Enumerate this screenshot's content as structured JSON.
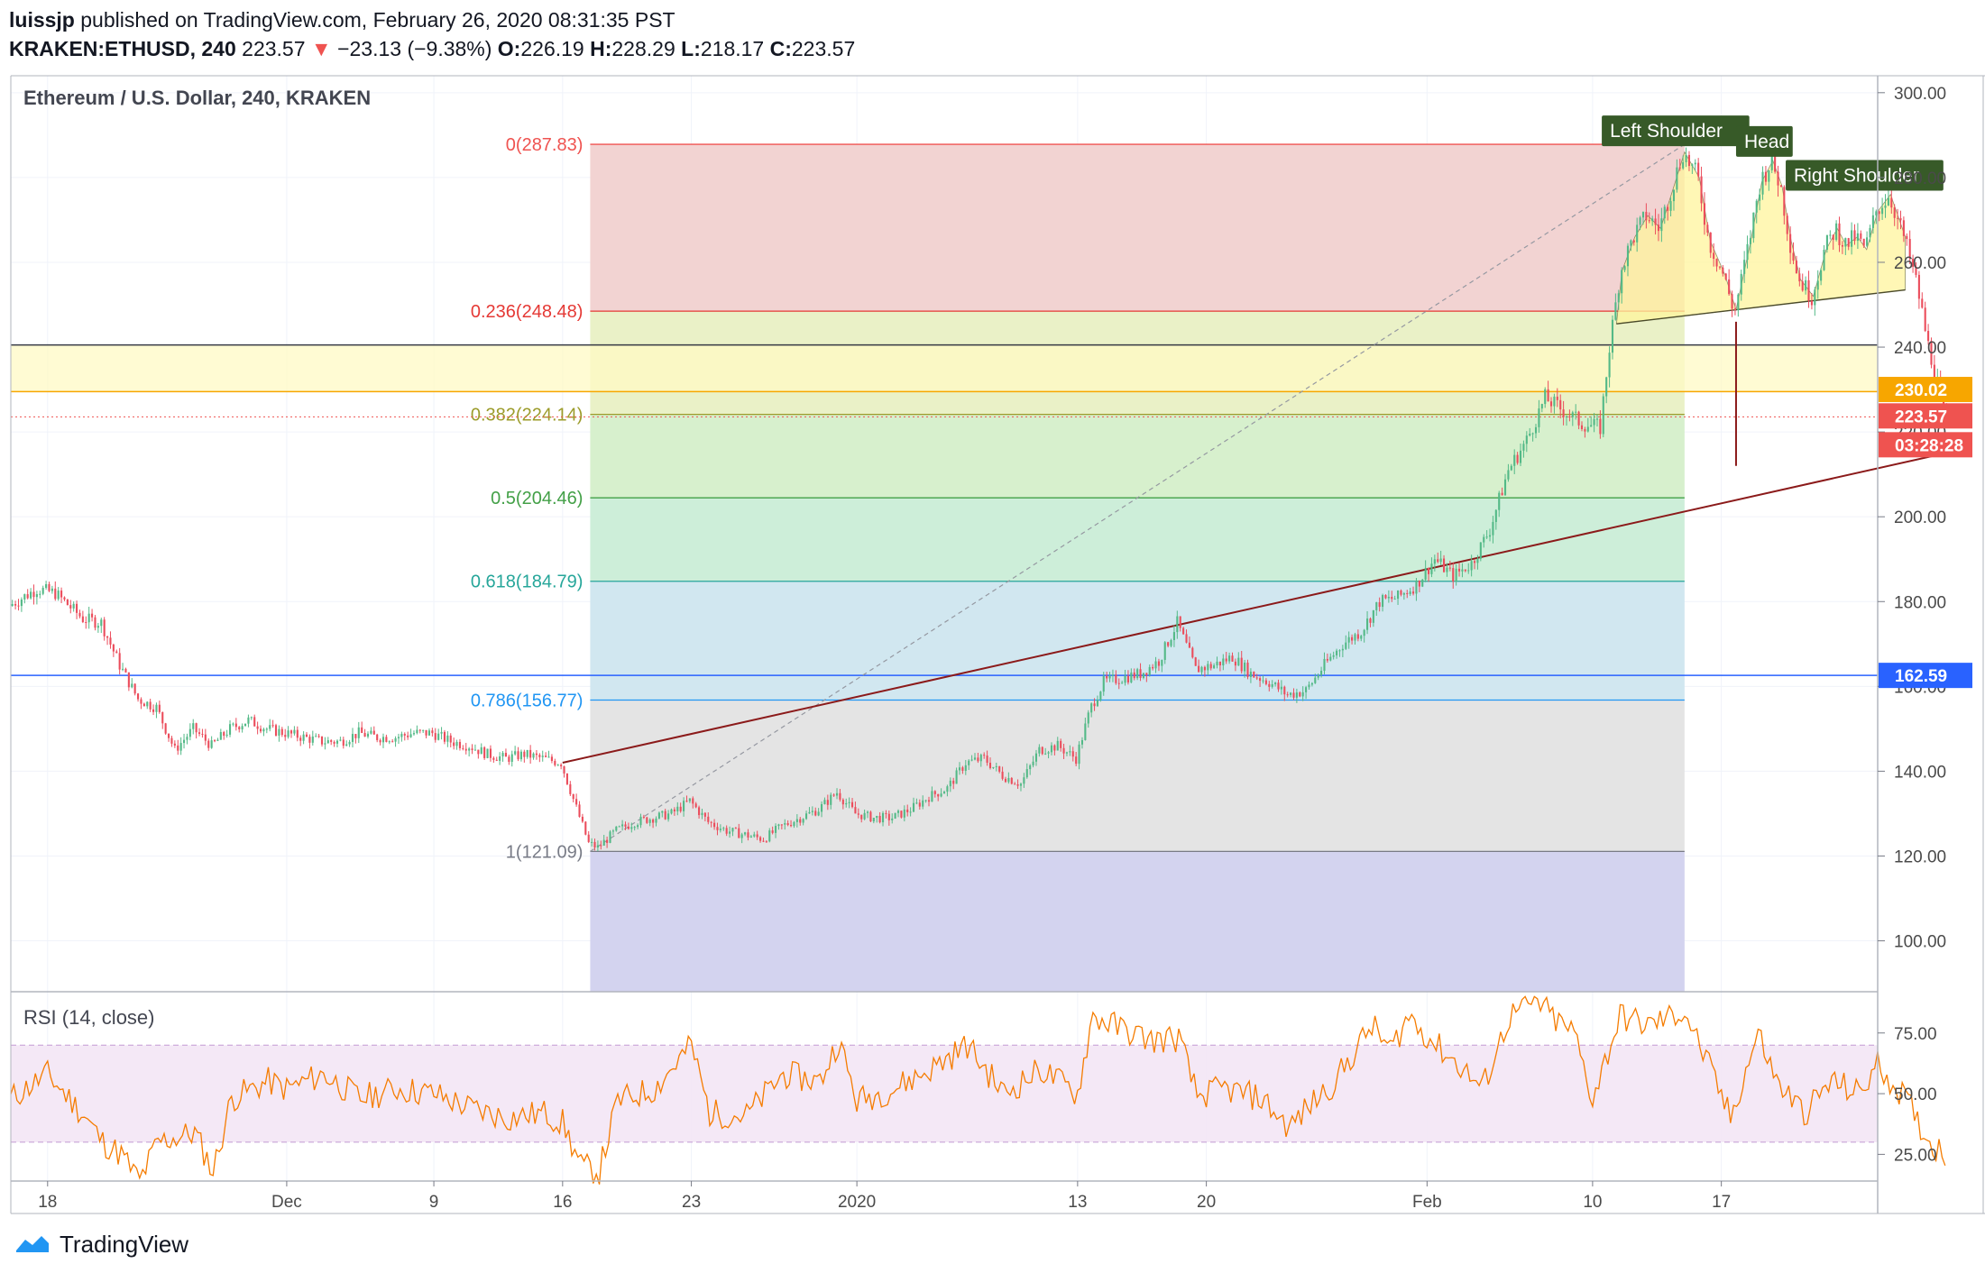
{
  "header": {
    "publisher": "luissjp",
    "published_text": "published on TradingView.com, February 26, 2020 08:31:35 PST",
    "symbol": "KRAKEN:ETHUSD, 240",
    "last": "223.57",
    "change_arrow": "▼",
    "change": "−23.13 (−9.38%)",
    "o_label": "O:",
    "o": "226.19",
    "h_label": "H:",
    "h": "228.29",
    "l_label": "L:",
    "l": "218.17",
    "c_label": "C:",
    "c": "223.57"
  },
  "footer": {
    "brand": "TradingView",
    "logo_icon": "tradingview-logo-icon"
  },
  "chart_data": [
    {
      "type": "candlestick",
      "title": "Ethereum / U.S. Dollar, 240, KRAKEN",
      "ylim": [
        88,
        304
      ],
      "y_ticks": [
        "300.00",
        "280.00",
        "260.00",
        "240.00",
        "220.00",
        "200.00",
        "180.00",
        "160.00",
        "140.00",
        "120.00",
        "100.00"
      ],
      "x_ticks": [
        {
          "label": "18",
          "day": 0
        },
        {
          "label": "Dec",
          "day": 13
        },
        {
          "label": "9",
          "day": 21
        },
        {
          "label": "16",
          "day": 28
        },
        {
          "label": "23",
          "day": 35
        },
        {
          "label": "2020",
          "day": 44
        },
        {
          "label": "13",
          "day": 56
        },
        {
          "label": "20",
          "day": 63
        },
        {
          "label": "Feb",
          "day": 75
        },
        {
          "label": "10",
          "day": 84
        },
        {
          "label": "17",
          "day": 91
        }
      ],
      "x_domain_days": [
        -2,
        99.5
      ],
      "last_day": 98.2,
      "price_path": [
        [
          -2,
          179
        ],
        [
          -0.5,
          183
        ],
        [
          0.5,
          182
        ],
        [
          2,
          176
        ],
        [
          3,
          175
        ],
        [
          4,
          165
        ],
        [
          5,
          157
        ],
        [
          6,
          155
        ],
        [
          7,
          145
        ],
        [
          8,
          150
        ],
        [
          9,
          146
        ],
        [
          10,
          150
        ],
        [
          11,
          152
        ],
        [
          12,
          150
        ],
        [
          13,
          149
        ],
        [
          14,
          148
        ],
        [
          15,
          147
        ],
        [
          16,
          147
        ],
        [
          17,
          149
        ],
        [
          18,
          148
        ],
        [
          19,
          148
        ],
        [
          20,
          149
        ],
        [
          21,
          149
        ],
        [
          22,
          147
        ],
        [
          23,
          146
        ],
        [
          24,
          144
        ],
        [
          25,
          143
        ],
        [
          26,
          144
        ],
        [
          27,
          143
        ],
        [
          28,
          142
        ],
        [
          28.7,
          133
        ],
        [
          29.5,
          123
        ],
        [
          30,
          122
        ],
        [
          31,
          126
        ],
        [
          32,
          128
        ],
        [
          33,
          129
        ],
        [
          34,
          130
        ],
        [
          35,
          133
        ],
        [
          36,
          128
        ],
        [
          37,
          126
        ],
        [
          38,
          125
        ],
        [
          39,
          124
        ],
        [
          40,
          127
        ],
        [
          41,
          129
        ],
        [
          42,
          131
        ],
        [
          43,
          135
        ],
        [
          44,
          130
        ],
        [
          45,
          129
        ],
        [
          46,
          129
        ],
        [
          47,
          131
        ],
        [
          48,
          134
        ],
        [
          49,
          136
        ],
        [
          50,
          142
        ],
        [
          51,
          143
        ],
        [
          52,
          139
        ],
        [
          53,
          137
        ],
        [
          54,
          145
        ],
        [
          55,
          146
        ],
        [
          56,
          143
        ],
        [
          56.8,
          155
        ],
        [
          57.5,
          161
        ],
        [
          58.5,
          162
        ],
        [
          59.5,
          163
        ],
        [
          60.5,
          166
        ],
        [
          61.5,
          175
        ],
        [
          62.5,
          164
        ],
        [
          63.5,
          165
        ],
        [
          64.5,
          167
        ],
        [
          65.5,
          163
        ],
        [
          66.5,
          161
        ],
        [
          67.5,
          158
        ],
        [
          68.5,
          159
        ],
        [
          69.5,
          165
        ],
        [
          70.5,
          170
        ],
        [
          71.5,
          173
        ],
        [
          72.5,
          180
        ],
        [
          73.5,
          181
        ],
        [
          74.5,
          184
        ],
        [
          75.5,
          190
        ],
        [
          76.5,
          186
        ],
        [
          77.5,
          189
        ],
        [
          78.5,
          197
        ],
        [
          79.5,
          211
        ],
        [
          80.5,
          218
        ],
        [
          81.5,
          228
        ],
        [
          82.5,
          225
        ],
        [
          83.5,
          222
        ],
        [
          84.5,
          221
        ],
        [
          85,
          240
        ],
        [
          85.6,
          258
        ],
        [
          86.3,
          266
        ],
        [
          87,
          271
        ],
        [
          87.7,
          268
        ],
        [
          88.5,
          279
        ],
        [
          89,
          286
        ],
        [
          89.8,
          280
        ],
        [
          90.4,
          265
        ],
        [
          91.2,
          257
        ],
        [
          91.8,
          248
        ],
        [
          92.6,
          265
        ],
        [
          93.2,
          279
        ],
        [
          93.8,
          284
        ],
        [
          94.3,
          278
        ],
        [
          94.8,
          265
        ],
        [
          95.3,
          256
        ],
        [
          96,
          252
        ],
        [
          96.7,
          263
        ],
        [
          97.3,
          268
        ],
        [
          97.8,
          264
        ],
        [
          98.4,
          266
        ],
        [
          98.9,
          263
        ],
        [
          99.5,
          272
        ],
        [
          100.2,
          276
        ],
        [
          101,
          266
        ],
        [
          101.7,
          255
        ],
        [
          102.3,
          241
        ],
        [
          102.8,
          232
        ],
        [
          103.2,
          223.57
        ]
      ],
      "horizontal_levels": [
        {
          "price": 240.5,
          "color": "#363a45"
        },
        {
          "price": 229.5,
          "color": "#f7a600"
        },
        {
          "price": 162.59,
          "color": "#2962ff"
        },
        {
          "price": 223.57,
          "color": "#ef5350",
          "dotted": true
        }
      ],
      "yellow_band": [
        229.5,
        240.5
      ],
      "fibonacci": {
        "start_day": 29.5,
        "end_day": 89,
        "low": 121.09,
        "high": 287.83,
        "levels": [
          {
            "label": "0(287.83)",
            "price": 287.83,
            "color": "#ef5350",
            "fill": "#f2d3d2"
          },
          {
            "label": "0.236(248.48)",
            "price": 248.48,
            "color": "#e53935",
            "fill": "#eaf1c7"
          },
          {
            "label": "0.382(224.14)",
            "price": 224.14,
            "color": "#9c9c2b",
            "fill": "#d7f0cd"
          },
          {
            "label": "0.5(204.46)",
            "price": 204.46,
            "color": "#43a047",
            "fill": "#cdeed9"
          },
          {
            "label": "0.618(184.79)",
            "price": 184.79,
            "color": "#26a69a",
            "fill": "#d1e7f0"
          },
          {
            "label": "0.786(156.77)",
            "price": 156.77,
            "color": "#2196f3",
            "fill": "#e4e4e4"
          },
          {
            "label": "1(121.09)",
            "price": 121.09,
            "color": "#787b86",
            "fill": "#d3d3ef"
          }
        ]
      },
      "trendline": {
        "from": [
          28,
          142
        ],
        "to": [
          103.7,
          215.5
        ],
        "color": "#8b1a1a"
      },
      "fib_diagonal": {
        "from": [
          29.5,
          121.09
        ],
        "to": [
          89,
          287.83
        ]
      },
      "pattern": {
        "labels": [
          {
            "text": "Left Shoulder",
            "day": 84.5,
            "price": 291
          },
          {
            "text": "Head",
            "day": 91.8,
            "price": 288.5
          },
          {
            "text": "Right Shoulder",
            "day": 94.5,
            "price": 280.5
          }
        ],
        "neckline": {
          "from": [
            85.3,
            245.5
          ],
          "to": [
            101,
            253.5
          ]
        },
        "head_drop": {
          "day": 91.8,
          "from": 246,
          "to": 212
        }
      },
      "price_badges": [
        {
          "price": 230.02,
          "text": "230.02",
          "bg": "#f7a600",
          "fg": "#ffffff"
        },
        {
          "price": 223.57,
          "text": "223.57",
          "bg": "#ef5350",
          "fg": "#ffffff"
        },
        {
          "text": "03:28:28",
          "bg": "#ef5350",
          "fg": "#ffffff"
        },
        {
          "price": 162.59,
          "text": "162.59",
          "bg": "#2962ff",
          "fg": "#ffffff"
        }
      ]
    },
    {
      "type": "line",
      "title": "RSI (14, close)",
      "ylim": [
        14,
        92
      ],
      "y_ticks": [
        "75.00",
        "50.00",
        "25.00"
      ],
      "band": [
        30,
        70
      ],
      "series": [
        {
          "values": [
            [
              -2,
              48
            ],
            [
              0,
              58
            ],
            [
              2,
              41
            ],
            [
              3,
              30
            ],
            [
              4,
              25
            ],
            [
              5,
              14
            ],
            [
              6,
              30
            ],
            [
              8,
              34
            ],
            [
              9,
              18
            ],
            [
              10,
              48
            ],
            [
              12,
              55
            ],
            [
              13,
              52
            ],
            [
              15,
              58
            ],
            [
              17,
              48
            ],
            [
              19,
              52
            ],
            [
              21,
              50
            ],
            [
              23,
              44
            ],
            [
              25,
              40
            ],
            [
              27,
              42
            ],
            [
              28,
              38
            ],
            [
              29,
              20
            ],
            [
              30,
              18
            ],
            [
              31,
              47
            ],
            [
              33,
              52
            ],
            [
              35,
              70
            ],
            [
              36,
              42
            ],
            [
              38,
              41
            ],
            [
              40,
              58
            ],
            [
              42,
              55
            ],
            [
              43,
              72
            ],
            [
              44,
              47
            ],
            [
              46,
              52
            ],
            [
              48,
              60
            ],
            [
              50,
              70
            ],
            [
              52,
              50
            ],
            [
              54,
              60
            ],
            [
              56,
              50
            ],
            [
              56.8,
              82
            ],
            [
              58,
              78
            ],
            [
              60,
              72
            ],
            [
              61.5,
              73
            ],
            [
              62.5,
              49
            ],
            [
              64,
              52
            ],
            [
              66,
              48
            ],
            [
              67.5,
              36
            ],
            [
              69,
              48
            ],
            [
              70,
              55
            ],
            [
              72,
              78
            ],
            [
              73,
              68
            ],
            [
              74,
              82
            ],
            [
              75.5,
              70
            ],
            [
              77,
              60
            ],
            [
              78,
              52
            ],
            [
              79.5,
              82
            ],
            [
              81,
              88
            ],
            [
              82,
              80
            ],
            [
              83,
              75
            ],
            [
              84,
              48
            ],
            [
              85.5,
              82
            ],
            [
              87,
              78
            ],
            [
              89,
              84
            ],
            [
              90.5,
              58
            ],
            [
              91.5,
              40
            ],
            [
              93,
              75
            ],
            [
              94,
              55
            ],
            [
              95.5,
              42
            ],
            [
              97,
              55
            ],
            [
              98.5,
              50
            ],
            [
              99.5,
              62
            ],
            [
              101,
              48
            ],
            [
              102.3,
              30
            ],
            [
              103.2,
              25
            ]
          ],
          "color": "#f57c00"
        }
      ]
    }
  ]
}
